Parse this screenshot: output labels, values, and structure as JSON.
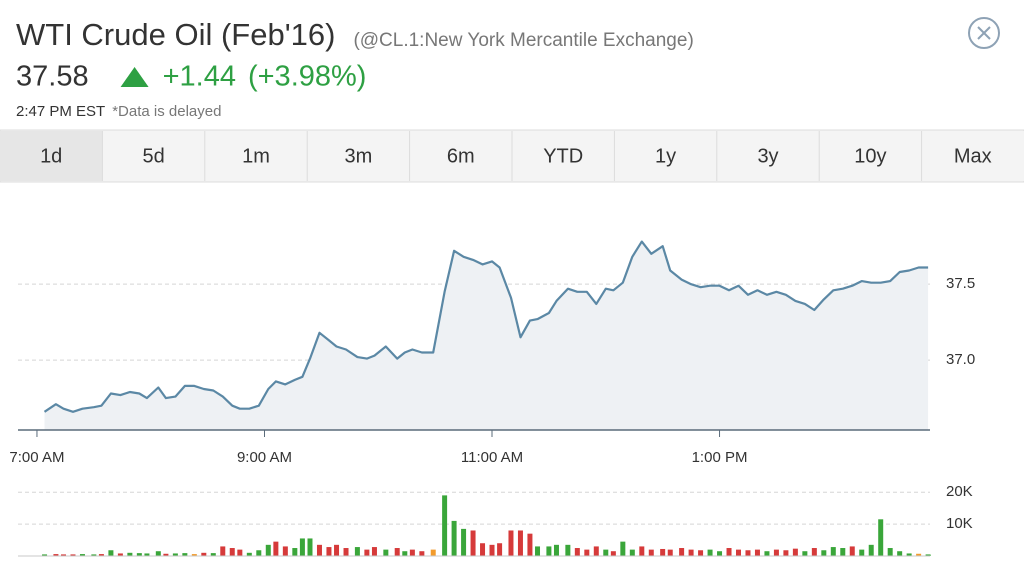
{
  "header": {
    "title": "WTI Crude Oil (Feb'16)",
    "symbol": "(@CL.1:New York Mercantile Exchange)",
    "price": "37.58",
    "change": "+1.44",
    "change_pct": "(+3.98%)",
    "time": "2:47 PM EST",
    "note": "*Data is delayed"
  },
  "tabs": [
    "1d",
    "5d",
    "1m",
    "3m",
    "6m",
    "YTD",
    "1y",
    "3y",
    "10y",
    "Max"
  ],
  "chart_data": [
    {
      "type": "line",
      "color": "#5b88a5",
      "fill": "#eef1f4",
      "x": [
        424,
        430,
        434,
        439,
        444,
        450,
        454,
        459,
        464,
        469,
        474,
        478,
        484,
        488,
        493,
        498,
        503,
        508,
        513,
        518,
        523,
        527,
        532,
        537,
        542,
        546,
        551,
        556,
        560,
        564,
        569,
        574,
        578,
        583,
        589,
        594,
        598,
        604,
        610,
        614,
        618,
        623,
        629,
        635,
        640,
        645,
        650,
        655,
        660,
        664,
        670,
        675,
        680,
        684,
        690,
        694,
        700,
        705,
        710,
        715,
        720,
        724,
        729,
        734,
        739,
        744,
        750,
        754,
        760,
        765,
        770,
        775,
        780,
        785,
        790,
        795,
        800,
        805,
        810,
        815,
        820,
        825,
        830,
        835,
        840,
        845,
        850,
        855,
        860,
        865,
        870,
        875,
        880,
        885,
        890
      ],
      "values": [
        36.66,
        36.71,
        36.68,
        36.66,
        36.68,
        36.69,
        36.7,
        36.78,
        36.77,
        36.79,
        36.78,
        36.75,
        36.82,
        36.75,
        36.76,
        36.83,
        36.83,
        36.81,
        36.8,
        36.76,
        36.7,
        36.68,
        36.68,
        36.7,
        36.81,
        36.86,
        36.84,
        36.87,
        36.89,
        37.01,
        37.18,
        37.13,
        37.09,
        37.07,
        37.02,
        37.01,
        37.03,
        37.09,
        37.01,
        37.05,
        37.07,
        37.05,
        37.05,
        37.45,
        37.72,
        37.68,
        37.66,
        37.63,
        37.65,
        37.61,
        37.41,
        37.15,
        37.26,
        37.27,
        37.31,
        37.39,
        37.47,
        37.45,
        37.45,
        37.37,
        37.47,
        37.46,
        37.51,
        37.68,
        37.78,
        37.7,
        37.75,
        37.59,
        37.53,
        37.5,
        37.48,
        37.49,
        37.49,
        37.46,
        37.49,
        37.43,
        37.46,
        37.43,
        37.45,
        37.43,
        37.39,
        37.37,
        37.33,
        37.4,
        37.46,
        37.47,
        37.49,
        37.52,
        37.51,
        37.51,
        37.52,
        37.58,
        37.59,
        37.61,
        37.61
      ],
      "xlim": [
        410,
        891
      ],
      "xticks": [
        {
          "value": 420,
          "label": "7:00 AM"
        },
        {
          "value": 540,
          "label": "9:00 AM"
        },
        {
          "value": 660,
          "label": "11:00 AM"
        },
        {
          "value": 780,
          "label": "1:00 PM"
        }
      ],
      "ylim": [
        36.54,
        38.12
      ],
      "yticks": [
        {
          "value": 37,
          "label": "37.0"
        },
        37.5
      ],
      "grid": true
    },
    {
      "type": "bar",
      "x": [
        424,
        430,
        434,
        439,
        444,
        450,
        454,
        459,
        464,
        469,
        474,
        478,
        484,
        488,
        493,
        498,
        503,
        508,
        513,
        518,
        523,
        527,
        532,
        537,
        542,
        546,
        551,
        556,
        560,
        564,
        569,
        574,
        578,
        583,
        589,
        594,
        598,
        604,
        610,
        614,
        618,
        623,
        629,
        635,
        640,
        645,
        650,
        655,
        660,
        664,
        670,
        675,
        680,
        684,
        690,
        694,
        700,
        705,
        710,
        715,
        720,
        724,
        729,
        734,
        739,
        744,
        750,
        754,
        760,
        765,
        770,
        775,
        780,
        785,
        790,
        795,
        800,
        805,
        810,
        815,
        820,
        825,
        830,
        835,
        840,
        845,
        850,
        855,
        860,
        865,
        870,
        875,
        880,
        885,
        890
      ],
      "values": [
        500,
        600,
        500,
        500,
        600,
        500,
        600,
        1800,
        800,
        1000,
        900,
        800,
        1500,
        700,
        800,
        900,
        600,
        1000,
        900,
        3000,
        2500,
        2000,
        1000,
        1800,
        3500,
        4500,
        3000,
        2500,
        5500,
        5500,
        3500,
        2800,
        3500,
        2500,
        2800,
        2000,
        2800,
        2000,
        2500,
        1500,
        2000,
        1500,
        2000,
        19000,
        11000,
        8500,
        8000,
        4000,
        3500,
        4000,
        8000,
        8000,
        7000,
        3000,
        3000,
        3500,
        3500,
        2500,
        2000,
        3000,
        2000,
        1500,
        4500,
        2000,
        3000,
        2000,
        2200,
        2000,
        2500,
        2000,
        1800,
        2000,
        1500,
        2500,
        2000,
        1800,
        2000,
        1500,
        2000,
        1800,
        2300,
        1500,
        2500,
        1800,
        2800,
        2500,
        3000,
        2000,
        3500,
        11500,
        2500,
        1500,
        800,
        700,
        500
      ],
      "colors": [
        "#3aa63a",
        "#d63a3a",
        "#d63a3a",
        "#d63a3a",
        "#3aa63a",
        "#3aa63a",
        "#d63a3a",
        "#3aa63a",
        "#d63a3a",
        "#3aa63a",
        "#3aa63a",
        "#3aa63a",
        "#3aa63a",
        "#d63a3a",
        "#3aa63a",
        "#3aa63a",
        "#f29b2c",
        "#d63a3a",
        "#3aa63a",
        "#d63a3a",
        "#d63a3a",
        "#d63a3a",
        "#3aa63a",
        "#3aa63a",
        "#3aa63a",
        "#d63a3a",
        "#d63a3a",
        "#3aa63a",
        "#3aa63a",
        "#3aa63a",
        "#d63a3a",
        "#d63a3a",
        "#d63a3a",
        "#d63a3a",
        "#3aa63a",
        "#d63a3a",
        "#d63a3a",
        "#3aa63a",
        "#d63a3a",
        "#3aa63a",
        "#d63a3a",
        "#d63a3a",
        "#f29b2c",
        "#3aa63a",
        "#3aa63a",
        "#3aa63a",
        "#d63a3a",
        "#d63a3a",
        "#d63a3a",
        "#d63a3a",
        "#d63a3a",
        "#d63a3a",
        "#d63a3a",
        "#3aa63a",
        "#3aa63a",
        "#3aa63a",
        "#3aa63a",
        "#d63a3a",
        "#d63a3a",
        "#d63a3a",
        "#3aa63a",
        "#d63a3a",
        "#3aa63a",
        "#3aa63a",
        "#d63a3a",
        "#d63a3a",
        "#d63a3a",
        "#d63a3a",
        "#d63a3a",
        "#d63a3a",
        "#d63a3a",
        "#3aa63a",
        "#3aa63a",
        "#d63a3a",
        "#d63a3a",
        "#d63a3a",
        "#d63a3a",
        "#3aa63a",
        "#d63a3a",
        "#d63a3a",
        "#d63a3a",
        "#3aa63a",
        "#d63a3a",
        "#3aa63a",
        "#3aa63a",
        "#3aa63a",
        "#d63a3a",
        "#3aa63a",
        "#3aa63a",
        "#3aa63a",
        "#3aa63a",
        "#3aa63a",
        "#3aa63a",
        "#f29b2c",
        "#3aa63a"
      ],
      "xlim": [
        410,
        891
      ],
      "ylim": [
        0,
        21000
      ],
      "yticks": [
        {
          "value": 10000,
          "label": "10K"
        },
        {
          "value": 20000,
          "label": "20K"
        }
      ],
      "grid": true
    }
  ]
}
